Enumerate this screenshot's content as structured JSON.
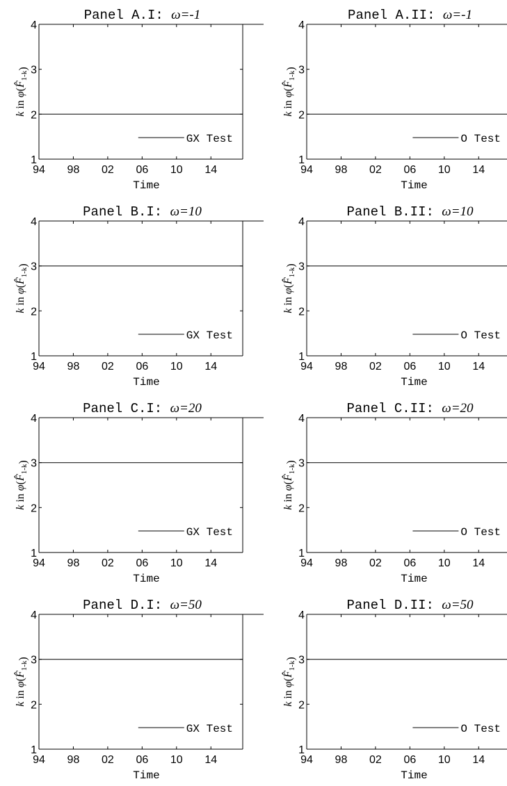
{
  "page": {
    "app_title": ""
  },
  "axis_style": {
    "axis_color": "#000000",
    "line_color": "#000000",
    "background": "#ffffff"
  },
  "chart_data": [
    {
      "type": "line",
      "title_text": "Panel A.I:",
      "title_omega": "ω=-1",
      "xlabel": "Time",
      "ylabel": "k in φ(F̂1-k)",
      "x_ticks": [
        "94",
        "98",
        "02",
        "06",
        "10",
        "14"
      ],
      "y_ticks": [
        "1",
        "2",
        "3",
        "4"
      ],
      "xlim": [
        1994,
        2017.7
      ],
      "ylim": [
        1,
        4
      ],
      "series": [
        {
          "name": "GX Test",
          "x": [
            1994,
            2017.7
          ],
          "y": [
            2,
            2
          ]
        }
      ],
      "legend_position": "bottom-right"
    },
    {
      "type": "line",
      "title_text": "Panel A.II:",
      "title_omega": "ω=-1",
      "xlabel": "Time",
      "ylabel": "k in φ(F̂1-k)",
      "x_ticks": [
        "94",
        "98",
        "02",
        "06",
        "10",
        "14"
      ],
      "y_ticks": [
        "1",
        "2",
        "3",
        "4"
      ],
      "xlim": [
        1994,
        2017.7
      ],
      "ylim": [
        1,
        4
      ],
      "series": [
        {
          "name": "O Test",
          "x": [
            1994,
            2017.7
          ],
          "y": [
            2,
            2
          ]
        }
      ],
      "legend_position": "bottom-right"
    },
    {
      "type": "line",
      "title_text": "Panel B.I:",
      "title_omega": "ω=10",
      "xlabel": "Time",
      "ylabel": "k in φ(F̂1-k)",
      "x_ticks": [
        "94",
        "98",
        "02",
        "06",
        "10",
        "14"
      ],
      "y_ticks": [
        "1",
        "2",
        "3",
        "4"
      ],
      "xlim": [
        1994,
        2017.7
      ],
      "ylim": [
        1,
        4
      ],
      "series": [
        {
          "name": "GX Test",
          "x": [
            1994,
            2017.7
          ],
          "y": [
            3,
            3
          ]
        }
      ],
      "legend_position": "bottom-right"
    },
    {
      "type": "line",
      "title_text": "Panel B.II:",
      "title_omega": "ω=10",
      "xlabel": "Time",
      "ylabel": "k in φ(F̂1-k)",
      "x_ticks": [
        "94",
        "98",
        "02",
        "06",
        "10",
        "14"
      ],
      "y_ticks": [
        "1",
        "2",
        "3",
        "4"
      ],
      "xlim": [
        1994,
        2017.7
      ],
      "ylim": [
        1,
        4
      ],
      "series": [
        {
          "name": "O Test",
          "x": [
            1994,
            2017.7
          ],
          "y": [
            3,
            3
          ]
        }
      ],
      "legend_position": "bottom-right"
    },
    {
      "type": "line",
      "title_text": "Panel C.I:",
      "title_omega": "ω=20",
      "xlabel": "Time",
      "ylabel": "k in φ(F̂1-k)",
      "x_ticks": [
        "94",
        "98",
        "02",
        "06",
        "10",
        "14"
      ],
      "y_ticks": [
        "1",
        "2",
        "3",
        "4"
      ],
      "xlim": [
        1994,
        2017.7
      ],
      "ylim": [
        1,
        4
      ],
      "series": [
        {
          "name": "GX Test",
          "x": [
            1994,
            2017.7
          ],
          "y": [
            3,
            3
          ]
        }
      ],
      "legend_position": "bottom-right"
    },
    {
      "type": "line",
      "title_text": "Panel C.II:",
      "title_omega": "ω=20",
      "xlabel": "Time",
      "ylabel": "k in φ(F̂1-k)",
      "x_ticks": [
        "94",
        "98",
        "02",
        "06",
        "10",
        "14"
      ],
      "y_ticks": [
        "1",
        "2",
        "3",
        "4"
      ],
      "xlim": [
        1994,
        2017.7
      ],
      "ylim": [
        1,
        4
      ],
      "series": [
        {
          "name": "O Test",
          "x": [
            1994,
            2017.7
          ],
          "y": [
            3,
            3
          ]
        }
      ],
      "legend_position": "bottom-right"
    },
    {
      "type": "line",
      "title_text": "Panel D.I:",
      "title_omega": "ω=50",
      "xlabel": "Time",
      "ylabel": "k in φ(F̂1-k)",
      "x_ticks": [
        "94",
        "98",
        "02",
        "06",
        "10",
        "14"
      ],
      "y_ticks": [
        "1",
        "2",
        "3",
        "4"
      ],
      "xlim": [
        1994,
        2017.7
      ],
      "ylim": [
        1,
        4
      ],
      "series": [
        {
          "name": "GX Test",
          "x": [
            1994,
            2017.7
          ],
          "y": [
            3,
            3
          ]
        }
      ],
      "legend_position": "bottom-right"
    },
    {
      "type": "line",
      "title_text": "Panel D.II:",
      "title_omega": "ω=50",
      "xlabel": "Time",
      "ylabel": "k in φ(F̂1-k)",
      "x_ticks": [
        "94",
        "98",
        "02",
        "06",
        "10",
        "14"
      ],
      "y_ticks": [
        "1",
        "2",
        "3",
        "4"
      ],
      "xlim": [
        1994,
        2017.7
      ],
      "ylim": [
        1,
        4
      ],
      "series": [
        {
          "name": "O Test",
          "x": [
            1994,
            2017.7
          ],
          "y": [
            3,
            3
          ]
        }
      ],
      "legend_position": "bottom-right"
    }
  ]
}
